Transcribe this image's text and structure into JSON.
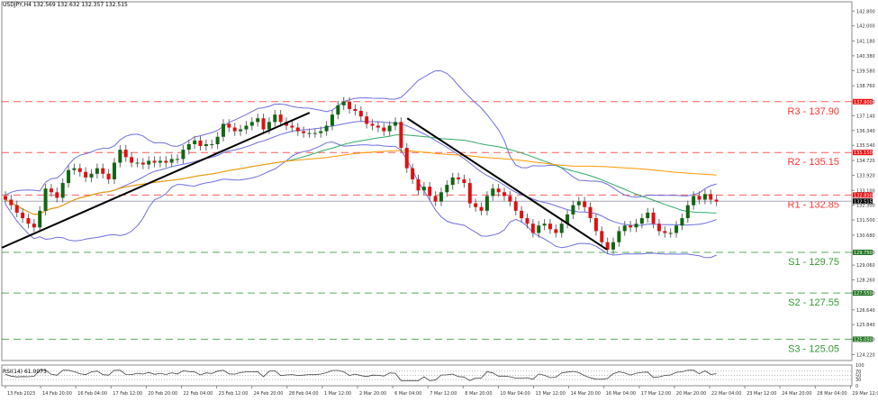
{
  "header": {
    "symbol_line": "USDJPY,H4  132.569 132.632 132.357 132.515"
  },
  "rsi": {
    "label": "RSI(14) 61.0073",
    "levels": [
      "100",
      "70",
      "50",
      "30",
      "0"
    ]
  },
  "colors": {
    "resistance": "#ff3333",
    "support": "#339933",
    "bollinger": "#6f6fe0",
    "ma_green": "#33aa66",
    "ma_orange": "#ff9900",
    "bull": "#116611",
    "bear": "#dd1111",
    "price_badge": "#000000"
  },
  "chart_data": {
    "type": "candlestick",
    "title": "USDJPY,H4",
    "ohlc_header": {
      "open": 132.569,
      "high": 132.632,
      "low": 132.357,
      "close": 132.515
    },
    "ylim": [
      123.9,
      143.3
    ],
    "y_ticks": [
      "142.800",
      "142.000",
      "141.180",
      "140.380",
      "139.580",
      "138.760",
      "137.900",
      "137.140",
      "136.340",
      "135.540",
      "134.720",
      "133.920",
      "133.100",
      "132.300",
      "131.500",
      "130.680",
      "129.750",
      "129.060",
      "128.260",
      "127.550",
      "126.640",
      "125.840",
      "125.050",
      "124.220"
    ],
    "x_ticks": [
      "13 Feb 2023",
      "14 Feb 20:00",
      "16 Feb 04:00",
      "17 Feb 12:00",
      "20 Feb 20:00",
      "22 Feb 04:00",
      "23 Feb 12:00",
      "24 Feb 20:00",
      "28 Feb 04:00",
      "1 Mar 12:00",
      "2 Mar 20:00",
      "6 Mar 04:00",
      "7 Mar 12:00",
      "8 Mar 20:00",
      "10 Mar 04:00",
      "13 Mar 12:00",
      "14 Mar 20:00",
      "16 Mar 04:00",
      "17 Mar 12:00",
      "20 Mar 20:00",
      "22 Mar 04:00",
      "23 Mar 12:00",
      "24 Mar 20:00",
      "28 Mar 04:00",
      "29 Mar 12:00"
    ],
    "levels": [
      {
        "name": "R3",
        "label": "R3 - 137.90",
        "value": 137.9,
        "badge": "137.900",
        "type": "resistance"
      },
      {
        "name": "R2",
        "label": "R2 - 135.15",
        "value": 135.15,
        "badge": "135.150",
        "type": "resistance"
      },
      {
        "name": "R1",
        "label": "R1 - 132.85",
        "value": 132.85,
        "badge": "132.850",
        "type": "resistance"
      },
      {
        "name": "S1",
        "label": "S1 - 129.75",
        "value": 129.75,
        "badge": "129.750",
        "type": "support"
      },
      {
        "name": "S2",
        "label": "S2 - 127.55",
        "value": 127.55,
        "badge": "127.550",
        "type": "support"
      },
      {
        "name": "S3",
        "label": "S3 - 125.05",
        "value": 125.05,
        "badge": "125.050",
        "type": "support"
      }
    ],
    "current_price": {
      "value": 132.515,
      "badge": "132.515"
    },
    "trendlines": [
      {
        "from": [
          0,
          130.0
        ],
        "to": [
          0.362,
          137.3
        ]
      },
      {
        "from": [
          0.477,
          137.0
        ],
        "to": [
          0.712,
          129.9
        ]
      }
    ],
    "closes": [
      132.6,
      132.3,
      131.9,
      131.6,
      131.3,
      131.1,
      132.0,
      133.2,
      133.0,
      132.7,
      133.5,
      134.2,
      134.3,
      134.1,
      133.8,
      134.0,
      134.3,
      134.0,
      133.7,
      134.6,
      135.3,
      134.9,
      134.6,
      134.6,
      134.5,
      134.7,
      134.6,
      134.7,
      134.6,
      134.8,
      134.8,
      135.3,
      135.6,
      135.8,
      135.5,
      135.6,
      135.6,
      136.0,
      136.7,
      136.5,
      136.3,
      136.4,
      136.6,
      136.8,
      137.0,
      136.4,
      136.8,
      137.2,
      136.8,
      136.6,
      136.5,
      136.3,
      136.2,
      136.2,
      136.2,
      136.3,
      136.6,
      137.2,
      137.7,
      137.9,
      137.5,
      137.4,
      137.1,
      136.7,
      136.6,
      136.5,
      136.3,
      136.6,
      136.8,
      135.4,
      134.3,
      133.7,
      133.1,
      133.3,
      132.8,
      132.5,
      133.0,
      133.4,
      133.8,
      133.7,
      133.5,
      132.4,
      132.2,
      132.0,
      132.8,
      133.2,
      133.0,
      132.8,
      132.5,
      132.0,
      131.6,
      131.3,
      130.8,
      131.2,
      131.3,
      131.0,
      130.8,
      131.3,
      131.8,
      132.3,
      132.5,
      132.2,
      131.6,
      130.9,
      130.3,
      129.9,
      130.3,
      130.9,
      131.2,
      131.1,
      131.3,
      131.6,
      131.9,
      131.3,
      130.9,
      130.8,
      130.8,
      131.2,
      131.6,
      132.3,
      132.8,
      132.6,
      132.9,
      132.6,
      132.5
    ]
  }
}
